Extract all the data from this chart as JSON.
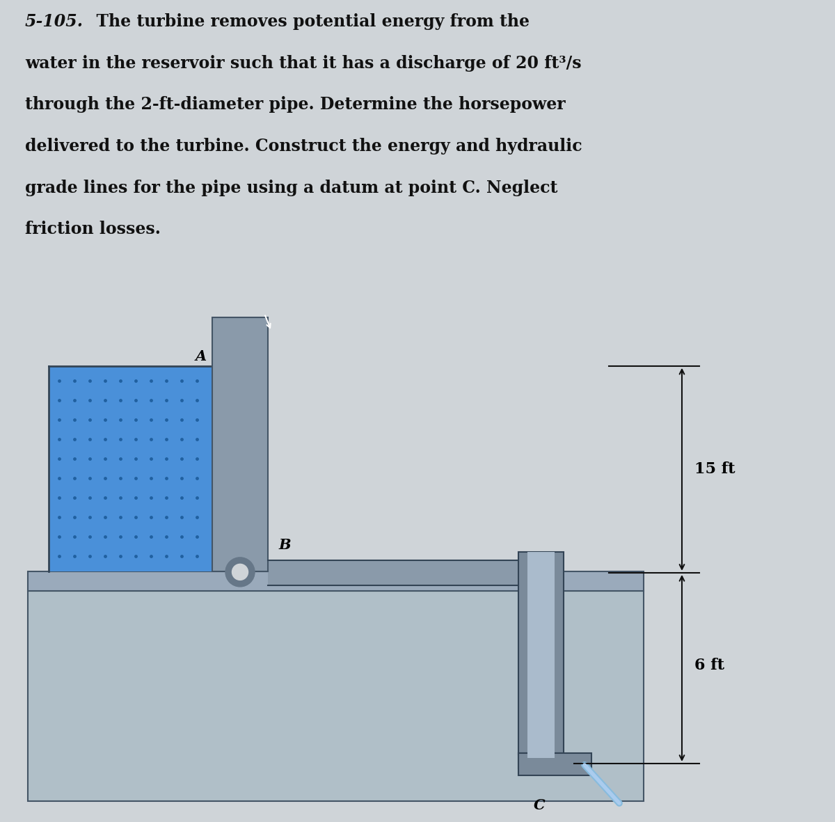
{
  "bg_color": "#cfd4d8",
  "reservoir_color": "#4a90d9",
  "reservoir_dot_color": "#2060a0",
  "wall_color": "#8a9aaa",
  "wall_color2": "#7a8a9a",
  "pipe_color": "#8a9aaa",
  "pipe_dark": "#556677",
  "ground_color": "#9aaabb",
  "base_color": "#b0bfc8",
  "elbow_color": "#7a8a9a",
  "text_color": "#111111",
  "dim_line_color": "#111111",
  "label_A": "A",
  "label_B": "B",
  "label_C": "C",
  "dim_15ft": "15 ft",
  "dim_6ft": "6 ft",
  "title_bold": "5-105.",
  "title_rest": "  The turbine removes potential energy from the water in the reservoir such that it has a discharge of 20 ft³/s through the 2-ft-diameter pipe. Determine the horsepower delivered to the turbine. Construct the energy and hydraulic grade lines for the pipe using a datum at point C. Neglect friction losses."
}
